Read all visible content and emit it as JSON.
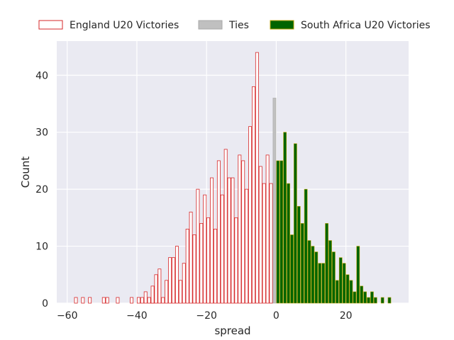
{
  "chart_data": {
    "type": "bar",
    "title": "",
    "xlabel": "spread",
    "ylabel": "Count",
    "xlim": [
      -63,
      38
    ],
    "ylim": [
      0,
      46
    ],
    "xticks": [
      -60,
      -40,
      -20,
      0,
      20
    ],
    "yticks": [
      0,
      10,
      20,
      30,
      40
    ],
    "grid": true,
    "legend_position": "top",
    "background": "#eaeaf2",
    "series": [
      {
        "name": "England U20 Victories",
        "style": "outline",
        "edge_color": "#d62728",
        "fill_color": "#ffffff",
        "bins": [
          {
            "x": -58,
            "count": 1
          },
          {
            "x": -56,
            "count": 1
          },
          {
            "x": -54,
            "count": 1
          },
          {
            "x": -50,
            "count": 1
          },
          {
            "x": -49,
            "count": 1
          },
          {
            "x": -46,
            "count": 1
          },
          {
            "x": -42,
            "count": 1
          },
          {
            "x": -40,
            "count": 1
          },
          {
            "x": -39,
            "count": 1
          },
          {
            "x": -38,
            "count": 2
          },
          {
            "x": -36,
            "count": 1
          },
          {
            "x": -37,
            "count": 1
          },
          {
            "x": -36,
            "count": 3
          },
          {
            "x": -35,
            "count": 5
          },
          {
            "x": -34,
            "count": 6
          },
          {
            "x": -33,
            "count": 1
          },
          {
            "x": -32,
            "count": 4
          },
          {
            "x": -31,
            "count": 8
          },
          {
            "x": -30,
            "count": 8
          },
          {
            "x": -29,
            "count": 10
          },
          {
            "x": -28,
            "count": 4
          },
          {
            "x": -27,
            "count": 7
          },
          {
            "x": -26,
            "count": 13
          },
          {
            "x": -25,
            "count": 16
          },
          {
            "x": -24,
            "count": 12
          },
          {
            "x": -23,
            "count": 20
          },
          {
            "x": -22,
            "count": 14
          },
          {
            "x": -21,
            "count": 19
          },
          {
            "x": -20,
            "count": 15
          },
          {
            "x": -19,
            "count": 22
          },
          {
            "x": -18,
            "count": 13
          },
          {
            "x": -17,
            "count": 25
          },
          {
            "x": -16,
            "count": 19
          },
          {
            "x": -15,
            "count": 27
          },
          {
            "x": -14,
            "count": 22
          },
          {
            "x": -13,
            "count": 22
          },
          {
            "x": -12,
            "count": 15
          },
          {
            "x": -11,
            "count": 26
          },
          {
            "x": -10,
            "count": 25
          },
          {
            "x": -9,
            "count": 20
          },
          {
            "x": -8,
            "count": 31
          },
          {
            "x": -7,
            "count": 38
          },
          {
            "x": -6,
            "count": 44
          },
          {
            "x": -5,
            "count": 24
          },
          {
            "x": -4,
            "count": 21
          },
          {
            "x": -3,
            "count": 26
          },
          {
            "x": -2,
            "count": 21
          }
        ]
      },
      {
        "name": "Ties",
        "style": "filled",
        "edge_color": "#a9a9a9",
        "fill_color": "#c0c0c0",
        "bins": [
          {
            "x": -1,
            "count": 36
          }
        ]
      },
      {
        "name": "South Africa U20 Victories",
        "style": "filled",
        "edge_color": "#b5a000",
        "fill_color": "#006400",
        "bins": [
          {
            "x": 0,
            "count": 25
          },
          {
            "x": 1,
            "count": 25
          },
          {
            "x": 2,
            "count": 30
          },
          {
            "x": 3,
            "count": 21
          },
          {
            "x": 4,
            "count": 12
          },
          {
            "x": 5,
            "count": 28
          },
          {
            "x": 6,
            "count": 17
          },
          {
            "x": 7,
            "count": 14
          },
          {
            "x": 8,
            "count": 20
          },
          {
            "x": 9,
            "count": 11
          },
          {
            "x": 10,
            "count": 10
          },
          {
            "x": 11,
            "count": 9
          },
          {
            "x": 12,
            "count": 7
          },
          {
            "x": 13,
            "count": 7
          },
          {
            "x": 14,
            "count": 14
          },
          {
            "x": 15,
            "count": 11
          },
          {
            "x": 16,
            "count": 9
          },
          {
            "x": 17,
            "count": 4
          },
          {
            "x": 18,
            "count": 8
          },
          {
            "x": 19,
            "count": 7
          },
          {
            "x": 20,
            "count": 5
          },
          {
            "x": 21,
            "count": 4
          },
          {
            "x": 22,
            "count": 2
          },
          {
            "x": 23,
            "count": 10
          },
          {
            "x": 24,
            "count": 3
          },
          {
            "x": 25,
            "count": 2
          },
          {
            "x": 26,
            "count": 1
          },
          {
            "x": 27,
            "count": 2
          },
          {
            "x": 28,
            "count": 1
          },
          {
            "x": 30,
            "count": 1
          },
          {
            "x": 32,
            "count": 1
          }
        ]
      }
    ]
  }
}
